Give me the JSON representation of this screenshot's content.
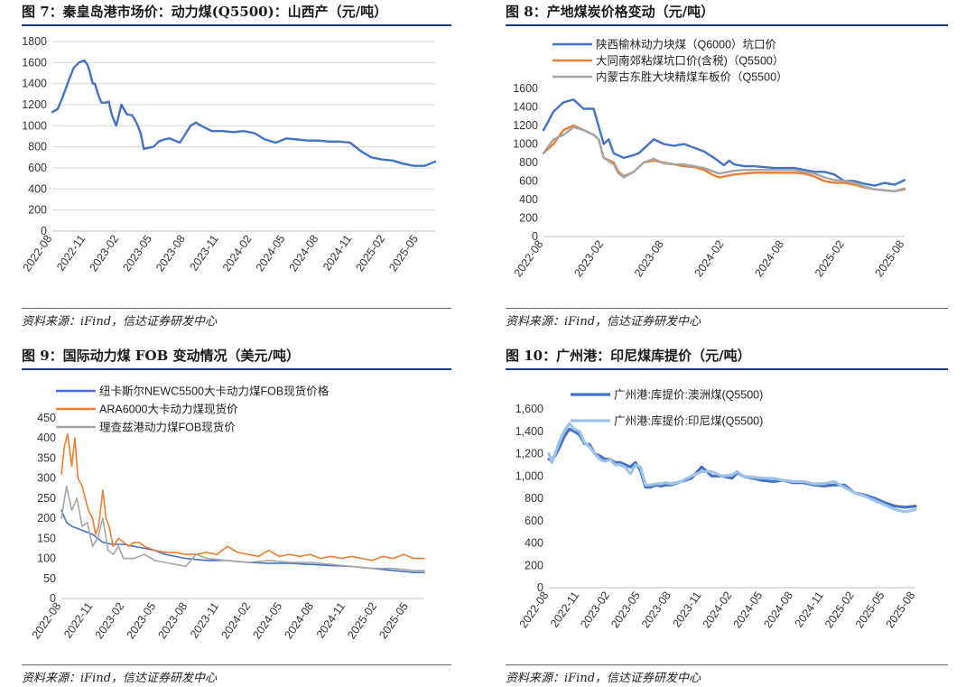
{
  "source_note": "资料来源：iFind，信达证券研发中心",
  "chart_data": [
    {
      "id": "c7",
      "title": "图 7：秦皇岛港市场价：动力煤(Q5500)：山西产（元/吨）",
      "type": "line",
      "ylim": [
        0,
        1800
      ],
      "yticks": [
        "0",
        "200",
        "400",
        "600",
        "800",
        "1000",
        "1200",
        "1400",
        "1600",
        "1800"
      ],
      "xticks": [
        "2022-08",
        "2022-11",
        "2023-02",
        "2023-05",
        "2023-08",
        "2023-11",
        "2024-02",
        "2024-05",
        "2024-08",
        "2024-11",
        "2025-02",
        "2025-05"
      ],
      "grid": true,
      "legend": "none",
      "series": [
        {
          "color": "#4472c4",
          "width": 2.4,
          "x": [
            0,
            0.5,
            1,
            1.5,
            2,
            2.5,
            3,
            3.3,
            3.5,
            3.8,
            4,
            4.3,
            4.6,
            5,
            5.3,
            5.6,
            6,
            6.5,
            7,
            7.5,
            7.8,
            8,
            8.3,
            8.6,
            9,
            9.5,
            10,
            10.5,
            11,
            12,
            13,
            13.5,
            14,
            15,
            16,
            17,
            18,
            19,
            20,
            21,
            21.5,
            22,
            23,
            24,
            25,
            26,
            27,
            28,
            29,
            29.5,
            30,
            31,
            32,
            33,
            34,
            35,
            36
          ],
          "y": [
            1130,
            1160,
            1280,
            1420,
            1550,
            1600,
            1620,
            1580,
            1520,
            1400,
            1400,
            1300,
            1220,
            1220,
            1230,
            1100,
            1000,
            1200,
            1110,
            1100,
            1050,
            1010,
            930,
            780,
            790,
            800,
            850,
            870,
            880,
            840,
            1000,
            1030,
            1000,
            950,
            950,
            940,
            950,
            930,
            870,
            840,
            860,
            880,
            870,
            860,
            860,
            850,
            850,
            840,
            760,
            730,
            700,
            680,
            670,
            640,
            620,
            620,
            660
          ]
        }
      ]
    },
    {
      "id": "c8",
      "title": "图 8：产地煤炭价格变动（元/吨）",
      "type": "line",
      "ylim": [
        0,
        1600
      ],
      "yticks": [
        "0",
        "200",
        "400",
        "600",
        "800",
        "1000",
        "1200",
        "1400",
        "1600"
      ],
      "xticks": [
        "2022-08",
        "2023-02",
        "2023-08",
        "2024-02",
        "2024-08",
        "2025-02",
        "2025-08"
      ],
      "grid": false,
      "legend": "top-left",
      "series": [
        {
          "name": "陕西榆林动力块煤（Q6000）坑口价",
          "color": "#4472c4",
          "width": 2.4,
          "x": [
            0,
            0.5,
            1,
            2,
            3,
            4,
            5,
            6,
            6.5,
            7,
            8,
            9,
            9.5,
            10,
            11,
            12,
            13,
            14,
            15,
            16,
            17,
            18,
            18.5,
            19,
            20,
            21,
            22,
            23,
            24,
            25,
            26,
            27,
            28,
            29,
            30,
            31,
            32,
            33,
            34,
            35,
            36
          ],
          "y": [
            1150,
            1250,
            1350,
            1450,
            1480,
            1380,
            1380,
            1000,
            1050,
            900,
            850,
            880,
            900,
            950,
            1050,
            1000,
            980,
            1000,
            960,
            920,
            850,
            770,
            820,
            780,
            760,
            760,
            750,
            740,
            740,
            740,
            720,
            700,
            700,
            670,
            600,
            600,
            570,
            550,
            580,
            560,
            610
          ]
        },
        {
          "name": "大同南郊粘煤坑口价(含税)（Q5500）",
          "color": "#ed7d31",
          "width": 2.4,
          "x": [
            0,
            1,
            2,
            3,
            4,
            5,
            5.5,
            6,
            7,
            7.5,
            8,
            9,
            10,
            11,
            12,
            13,
            14,
            15,
            16,
            17,
            17.5,
            18,
            19,
            20,
            21,
            22,
            23,
            24,
            25,
            26,
            27,
            28,
            29,
            30,
            31,
            32,
            33,
            34,
            35,
            36
          ],
          "y": [
            900,
            1000,
            1150,
            1200,
            1150,
            1100,
            1050,
            850,
            800,
            700,
            650,
            700,
            800,
            820,
            800,
            780,
            760,
            750,
            720,
            660,
            640,
            650,
            670,
            680,
            690,
            690,
            690,
            690,
            690,
            680,
            650,
            600,
            580,
            580,
            560,
            530,
            510,
            500,
            490,
            510
          ]
        },
        {
          "name": "内蒙古东胜大块精煤车板价（Q5500）",
          "color": "#a5a5a5",
          "width": 2.4,
          "x": [
            0,
            1,
            2,
            3,
            4,
            5,
            5.5,
            6,
            7,
            7.5,
            8,
            9,
            10,
            11,
            12,
            13,
            14,
            15,
            16,
            17,
            17.5,
            18,
            19,
            20,
            21,
            22,
            23,
            24,
            25,
            26,
            27,
            28,
            29,
            30,
            31,
            32,
            33,
            34,
            35,
            36
          ],
          "y": [
            900,
            1050,
            1100,
            1180,
            1150,
            1100,
            1050,
            850,
            780,
            680,
            640,
            700,
            800,
            840,
            790,
            780,
            780,
            760,
            740,
            700,
            680,
            690,
            710,
            720,
            720,
            720,
            720,
            720,
            720,
            700,
            680,
            640,
            610,
            600,
            580,
            540,
            510,
            500,
            490,
            520
          ]
        }
      ]
    },
    {
      "id": "c9",
      "title": "图 9：国际动力煤 FOB 变动情况（美元/吨）",
      "type": "line",
      "ylim": [
        0,
        450
      ],
      "yticks": [
        "0",
        "50",
        "100",
        "150",
        "200",
        "250",
        "300",
        "350",
        "400",
        "450"
      ],
      "xticks": [
        "2022-08",
        "2022-11",
        "2023-02",
        "2023-05",
        "2023-08",
        "2023-11",
        "2024-02",
        "2024-05",
        "2024-08",
        "2024-11",
        "2025-02",
        "2025-05"
      ],
      "grid": false,
      "legend": "top-left",
      "series": [
        {
          "name": "纽卡斯尔NEWC5500大卡动力煤FOB现货价格",
          "color": "#4472c4",
          "width": 1.6,
          "x": [
            0,
            0.5,
            1,
            2,
            3,
            4,
            5,
            6,
            7,
            8,
            9,
            10,
            12,
            14,
            16,
            18,
            20,
            22,
            24,
            26,
            28,
            30,
            32,
            34,
            35
          ],
          "y": [
            220,
            190,
            180,
            170,
            160,
            140,
            135,
            135,
            130,
            125,
            120,
            110,
            100,
            95,
            95,
            90,
            88,
            88,
            85,
            82,
            80,
            75,
            70,
            65,
            65
          ]
        },
        {
          "name": "ARA6000大卡动力煤现货价",
          "color": "#ed7d31",
          "width": 1.6,
          "x": [
            0,
            0.3,
            0.6,
            1,
            1.3,
            1.6,
            2,
            2.3,
            2.6,
            3,
            3.3,
            3.6,
            4,
            4.3,
            4.6,
            5,
            5.5,
            6,
            6.5,
            7,
            7.5,
            8,
            9,
            10,
            11,
            12,
            13,
            14,
            15,
            16,
            17,
            18,
            19,
            20,
            21,
            22,
            23,
            24,
            25,
            26,
            27,
            28,
            29,
            30,
            31,
            32,
            33,
            34,
            35
          ],
          "y": [
            310,
            380,
            410,
            330,
            400,
            300,
            280,
            250,
            220,
            200,
            160,
            180,
            270,
            200,
            180,
            130,
            150,
            140,
            130,
            140,
            140,
            130,
            120,
            115,
            115,
            110,
            110,
            115,
            110,
            130,
            115,
            110,
            105,
            120,
            105,
            110,
            105,
            110,
            100,
            105,
            100,
            105,
            100,
            95,
            105,
            100,
            110,
            100,
            100
          ]
        },
        {
          "name": "理查兹港动力煤FOB现货价",
          "color": "#a5a5a5",
          "width": 1.6,
          "x": [
            0,
            0.5,
            1,
            1.5,
            2,
            2.5,
            3,
            3.5,
            4,
            4.5,
            5,
            5.5,
            6,
            7,
            8,
            9,
            10,
            11,
            12,
            13,
            14,
            16,
            18,
            20,
            22,
            24,
            26,
            28,
            30,
            32,
            34,
            35
          ],
          "y": [
            200,
            280,
            220,
            250,
            180,
            190,
            130,
            150,
            200,
            120,
            110,
            130,
            100,
            100,
            110,
            95,
            90,
            85,
            80,
            110,
            100,
            95,
            90,
            95,
            90,
            90,
            85,
            80,
            75,
            75,
            70,
            70
          ]
        }
      ]
    },
    {
      "id": "c10",
      "title": "图 10：广州港：印尼煤库提价（元/吨）",
      "type": "line",
      "ylim": [
        0,
        1600
      ],
      "yticks": [
        "0",
        "200",
        "400",
        "600",
        "800",
        "1,000",
        "1,200",
        "1,400",
        "1,600"
      ],
      "xticks": [
        "2022-08",
        "2022-11",
        "2023-02",
        "2023-05",
        "2023-08",
        "2023-11",
        "2024-02",
        "2024-05",
        "2024-08",
        "2024-11",
        "2025-02",
        "2025-05",
        "2025-08"
      ],
      "grid": false,
      "legend": "top-center",
      "series": [
        {
          "name": "广州港:库提价:澳洲煤(Q5500)",
          "color": "#4472c4",
          "width": 3.2,
          "x": [
            0,
            0.3,
            0.6,
            1,
            1.5,
            2,
            2.5,
            3,
            3.5,
            4,
            4.5,
            5,
            5.5,
            6,
            6.5,
            7,
            7.5,
            8,
            8.5,
            9,
            9.5,
            10,
            10.5,
            11,
            11.5,
            12,
            13,
            14,
            15,
            16,
            17,
            18,
            18.5,
            19,
            20,
            21,
            22,
            23,
            24,
            25,
            26,
            27,
            28,
            29,
            30,
            31,
            32,
            33,
            34,
            35,
            36
          ],
          "y": [
            1150,
            1150,
            1180,
            1250,
            1350,
            1420,
            1400,
            1370,
            1290,
            1280,
            1200,
            1180,
            1150,
            1150,
            1120,
            1120,
            1100,
            1080,
            1120,
            1050,
            900,
            900,
            920,
            910,
            920,
            920,
            950,
            980,
            1080,
            1000,
            1000,
            980,
            1030,
            1000,
            980,
            960,
            950,
            960,
            940,
            940,
            920,
            910,
            920,
            920,
            850,
            830,
            800,
            760,
            730,
            720,
            730
          ]
        },
        {
          "name": "广州港:库提价:印尼煤(Q5500)",
          "color": "#9dc3e6",
          "width": 3.2,
          "x": [
            0,
            0.3,
            0.6,
            1,
            1.5,
            2,
            2.5,
            3,
            3.5,
            4,
            4.5,
            5,
            5.5,
            6,
            6.5,
            7,
            7.5,
            8,
            8.5,
            9,
            9.5,
            10,
            10.5,
            11,
            11.5,
            12,
            13,
            14,
            15,
            16,
            17,
            18,
            18.5,
            19,
            20,
            21,
            22,
            23,
            24,
            25,
            26,
            27,
            28,
            29,
            30,
            31,
            32,
            33,
            34,
            35,
            36
          ],
          "y": [
            1200,
            1120,
            1200,
            1300,
            1400,
            1470,
            1420,
            1400,
            1300,
            1260,
            1200,
            1150,
            1130,
            1150,
            1100,
            1100,
            1080,
            1020,
            1100,
            1080,
            920,
            920,
            930,
            930,
            940,
            930,
            950,
            1000,
            1040,
            1040,
            1000,
            1010,
            1040,
            1000,
            990,
            980,
            980,
            960,
            950,
            950,
            930,
            930,
            950,
            900,
            850,
            820,
            780,
            740,
            700,
            680,
            700
          ]
        }
      ]
    }
  ]
}
